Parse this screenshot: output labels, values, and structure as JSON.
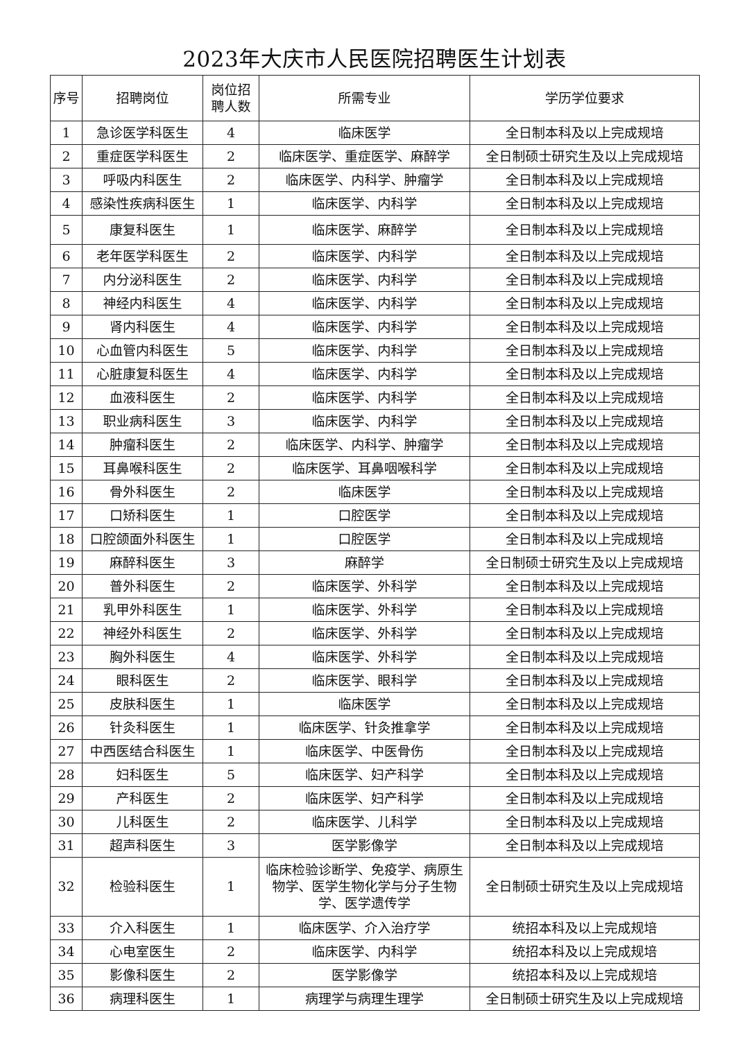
{
  "title": "2023年大庆市人民医院招聘医生计划表",
  "headers": [
    "序号",
    "招聘岗位",
    "岗位招聘人数",
    "所需专业",
    "学历学位要求"
  ],
  "rows": [
    [
      "1",
      "急诊医学科医生",
      "4",
      "临床医学",
      "全日制本科及以上完成规培"
    ],
    [
      "2",
      "重症医学科医生",
      "2",
      "临床医学、重症医学、麻醉学",
      "全日制硕士研究生及以上完成规培"
    ],
    [
      "3",
      "呼吸内科医生",
      "2",
      "临床医学、内科学、肿瘤学",
      "全日制本科及以上完成规培"
    ],
    [
      "4",
      "感染性疾病科医生",
      "1",
      "临床医学、内科学",
      "全日制本科及以上完成规培"
    ],
    [
      "5",
      "康复科医生",
      "1",
      "临床医学、麻醉学",
      "全日制本科及以上完成规培"
    ],
    [
      "6",
      "老年医学科医生",
      "2",
      "临床医学、内科学",
      "全日制本科及以上完成规培"
    ],
    [
      "7",
      "内分泌科医生",
      "2",
      "临床医学、内科学",
      "全日制本科及以上完成规培"
    ],
    [
      "8",
      "神经内科医生",
      "4",
      "临床医学、内科学",
      "全日制本科及以上完成规培"
    ],
    [
      "9",
      "肾内科医生",
      "4",
      "临床医学、内科学",
      "全日制本科及以上完成规培"
    ],
    [
      "10",
      "心血管内科医生",
      "5",
      "临床医学、内科学",
      "全日制本科及以上完成规培"
    ],
    [
      "11",
      "心脏康复科医生",
      "4",
      "临床医学、内科学",
      "全日制本科及以上完成规培"
    ],
    [
      "12",
      "血液科医生",
      "2",
      "临床医学、内科学",
      "全日制本科及以上完成规培"
    ],
    [
      "13",
      "职业病科医生",
      "3",
      "临床医学、内科学",
      "全日制本科及以上完成规培"
    ],
    [
      "14",
      "肿瘤科医生",
      "2",
      "临床医学、内科学、肿瘤学",
      "全日制本科及以上完成规培"
    ],
    [
      "15",
      "耳鼻喉科医生",
      "2",
      "临床医学、耳鼻咽喉科学",
      "全日制本科及以上完成规培"
    ],
    [
      "16",
      "骨外科医生",
      "2",
      "临床医学",
      "全日制本科及以上完成规培"
    ],
    [
      "17",
      "口矫科医生",
      "1",
      "口腔医学",
      "全日制本科及以上完成规培"
    ],
    [
      "18",
      "口腔颌面外科医生",
      "1",
      "口腔医学",
      "全日制本科及以上完成规培"
    ],
    [
      "19",
      "麻醉科医生",
      "3",
      "麻醉学",
      "全日制硕士研究生及以上完成规培"
    ],
    [
      "20",
      "普外科医生",
      "2",
      "临床医学、外科学",
      "全日制本科及以上完成规培"
    ],
    [
      "21",
      "乳甲外科医生",
      "1",
      "临床医学、外科学",
      "全日制本科及以上完成规培"
    ],
    [
      "22",
      "神经外科医生",
      "2",
      "临床医学、外科学",
      "全日制本科及以上完成规培"
    ],
    [
      "23",
      "胸外科医生",
      "4",
      "临床医学、外科学",
      "全日制本科及以上完成规培"
    ],
    [
      "24",
      "眼科医生",
      "2",
      "临床医学、眼科学",
      "全日制本科及以上完成规培"
    ],
    [
      "25",
      "皮肤科医生",
      "1",
      "临床医学",
      "全日制本科及以上完成规培"
    ],
    [
      "26",
      "针灸科医生",
      "1",
      "临床医学、针灸推拿学",
      "全日制本科及以上完成规培"
    ],
    [
      "27",
      "中西医结合科医生",
      "1",
      "临床医学、中医骨伤",
      "全日制本科及以上完成规培"
    ],
    [
      "28",
      "妇科医生",
      "5",
      "临床医学、妇产科学",
      "全日制本科及以上完成规培"
    ],
    [
      "29",
      "产科医生",
      "2",
      "临床医学、妇产科学",
      "全日制本科及以上完成规培"
    ],
    [
      "30",
      "儿科医生",
      "2",
      "临床医学、儿科学",
      "全日制本科及以上完成规培"
    ],
    [
      "31",
      "超声科医生",
      "3",
      "医学影像学",
      "全日制本科及以上完成规培"
    ],
    [
      "32",
      "检验科医生",
      "1",
      "临床检验诊断学、免疫学、病原生物学、医学生物化学与分子生物学、医学遗传学",
      "全日制硕士研究生及以上完成规培"
    ],
    [
      "33",
      "介入科医生",
      "1",
      "临床医学、介入治疗学",
      "统招本科及以上完成规培"
    ],
    [
      "34",
      "心电室医生",
      "2",
      "临床医学、内科学",
      "统招本科及以上完成规培"
    ],
    [
      "35",
      "影像科医生",
      "2",
      "医学影像学",
      "统招本科及以上完成规培"
    ],
    [
      "36",
      "病理科医生",
      "1",
      "病理学与病理生理学",
      "全日制硕士研究生及以上完成规培"
    ]
  ]
}
